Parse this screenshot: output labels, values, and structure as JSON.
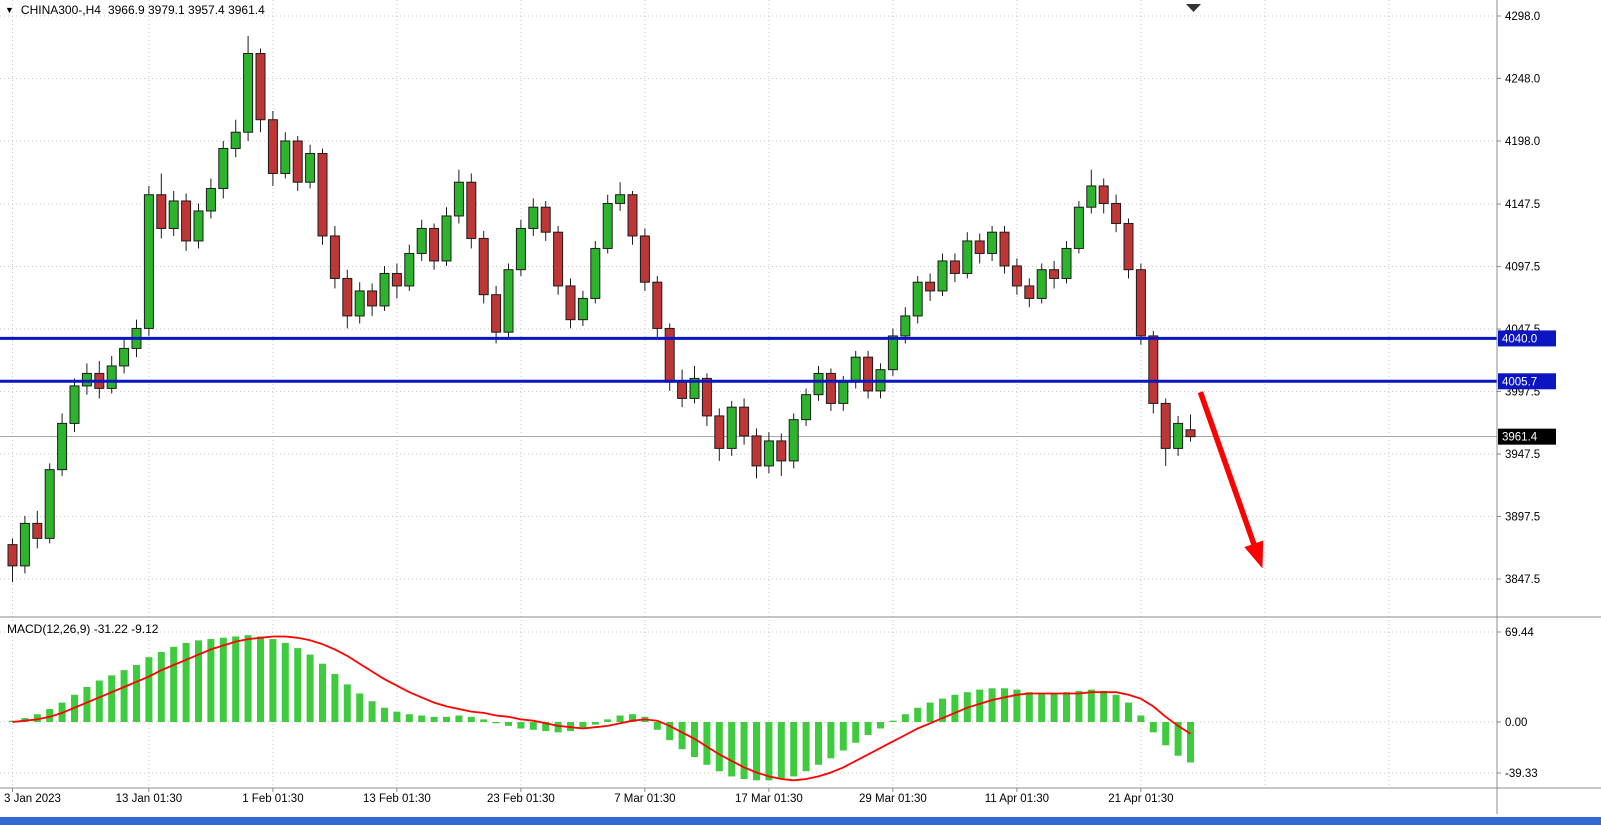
{
  "header": {
    "dropdown_icon": "▼",
    "symbol": "CHINA300-,H4",
    "ohlc_values": "3966.9 3979.1 3957.4 3961.4"
  },
  "macd_panel": {
    "label": "MACD(12,26,9)",
    "values": "-31.22 -9.12"
  },
  "price_axis": {
    "labels": [
      "4298.0",
      "4248.0",
      "4198.0",
      "4147.5",
      "4097.5",
      "4047.5",
      "3997.5",
      "3947.5",
      "3897.5",
      "3847.5"
    ],
    "values": [
      4298.0,
      4248.0,
      4198.0,
      4147.5,
      4097.5,
      4047.5,
      3997.5,
      3947.5,
      3897.5,
      3847.5
    ]
  },
  "macd_axis": {
    "labels": [
      "69.44",
      "0.00",
      "-39.33"
    ],
    "values": [
      69.44,
      0,
      -39.33
    ]
  },
  "colors": {
    "bull": "#2db42d",
    "bear": "#bf3636",
    "candle_outline": "#1c1c1c",
    "grid": "#c6c6c6",
    "level_line": "#0b16c0",
    "level_badge_text": "#ffffff",
    "last_price_line": "#a8a8a8",
    "last_price_badge": "#000000",
    "macd_histogram": "#3ecb3e",
    "macd_signal": "#ff0000",
    "arrow": "#fe0000",
    "separator": "#8c8c8c",
    "axis_text": "#000000",
    "bottom_bar": "#3468d4",
    "shift_marker": "#333333"
  },
  "chart_data": {
    "type": "candlestick",
    "symbol": "CHINA300-",
    "timeframe": "H4",
    "title": "CHINA300-,H4",
    "ohlc_display": [
      3966.9,
      3979.1,
      3957.4,
      3961.4
    ],
    "ylim": [
      3847.5,
      4298.0
    ],
    "grid": true,
    "time_labels": [
      "3 Jan 2023",
      "13 Jan 01:30",
      "1 Feb 01:30",
      "13 Feb 01:30",
      "23 Feb 01:30",
      "7 Mar 01:30",
      "17 Mar 01:30",
      "29 Mar 01:30",
      "11 Apr 01:30",
      "21 Apr 01:30"
    ],
    "label_indices": [
      0,
      11,
      21,
      31,
      41,
      51,
      61,
      71,
      81,
      91
    ],
    "extra_grid_indices": [
      101,
      111
    ],
    "horizontal_lines": [
      {
        "price": 4040.0,
        "label": "4040.0"
      },
      {
        "price": 4005.7,
        "label": "4005.7"
      }
    ],
    "last_price": {
      "value": 3961.4,
      "label": "3961.4"
    },
    "candles": [
      [
        3875,
        3880,
        3845,
        3858
      ],
      [
        3858,
        3898,
        3852,
        3892
      ],
      [
        3892,
        3902,
        3872,
        3880
      ],
      [
        3880,
        3940,
        3876,
        3935
      ],
      [
        3935,
        3980,
        3930,
        3972
      ],
      [
        3972,
        4008,
        3965,
        4002
      ],
      [
        4002,
        4020,
        3995,
        4012
      ],
      [
        4012,
        4022,
        3992,
        4000
      ],
      [
        4000,
        4026,
        3996,
        4018
      ],
      [
        4018,
        4040,
        4012,
        4032
      ],
      [
        4032,
        4055,
        4025,
        4048
      ],
      [
        4048,
        4162,
        4042,
        4155
      ],
      [
        4155,
        4172,
        4120,
        4128
      ],
      [
        4128,
        4158,
        4122,
        4150
      ],
      [
        4150,
        4156,
        4110,
        4118
      ],
      [
        4118,
        4148,
        4112,
        4142
      ],
      [
        4142,
        4168,
        4136,
        4160
      ],
      [
        4160,
        4198,
        4152,
        4192
      ],
      [
        4192,
        4215,
        4185,
        4205
      ],
      [
        4205,
        4282,
        4198,
        4268
      ],
      [
        4268,
        4272,
        4205,
        4215
      ],
      [
        4215,
        4222,
        4162,
        4172
      ],
      [
        4172,
        4205,
        4168,
        4198
      ],
      [
        4198,
        4202,
        4158,
        4165
      ],
      [
        4165,
        4195,
        4160,
        4188
      ],
      [
        4188,
        4192,
        4115,
        4122
      ],
      [
        4122,
        4130,
        4080,
        4088
      ],
      [
        4088,
        4095,
        4048,
        4058
      ],
      [
        4058,
        4085,
        4052,
        4078
      ],
      [
        4078,
        4084,
        4058,
        4066
      ],
      [
        4066,
        4098,
        4062,
        4092
      ],
      [
        4092,
        4100,
        4072,
        4082
      ],
      [
        4082,
        4115,
        4078,
        4108
      ],
      [
        4108,
        4135,
        4102,
        4128
      ],
      [
        4128,
        4132,
        4095,
        4102
      ],
      [
        4102,
        4145,
        4098,
        4138
      ],
      [
        4138,
        4175,
        4132,
        4165
      ],
      [
        4165,
        4172,
        4112,
        4120
      ],
      [
        4120,
        4126,
        4068,
        4075
      ],
      [
        4075,
        4082,
        4036,
        4045
      ],
      [
        4045,
        4100,
        4040,
        4095
      ],
      [
        4095,
        4135,
        4090,
        4128
      ],
      [
        4128,
        4152,
        4122,
        4145
      ],
      [
        4145,
        4150,
        4118,
        4125
      ],
      [
        4125,
        4130,
        4075,
        4082
      ],
      [
        4082,
        4088,
        4048,
        4055
      ],
      [
        4055,
        4078,
        4050,
        4072
      ],
      [
        4072,
        4118,
        4068,
        4112
      ],
      [
        4112,
        4155,
        4108,
        4148
      ],
      [
        4148,
        4165,
        4142,
        4155
      ],
      [
        4155,
        4158,
        4115,
        4122
      ],
      [
        4122,
        4128,
        4078,
        4085
      ],
      [
        4085,
        4090,
        4040,
        4048
      ],
      [
        4048,
        4052,
        3998,
        4005
      ],
      [
        4005,
        4015,
        3985,
        3992
      ],
      [
        3992,
        4018,
        3988,
        4008
      ],
      [
        4008,
        4012,
        3970,
        3978
      ],
      [
        3978,
        3984,
        3942,
        3952
      ],
      [
        3952,
        3990,
        3946,
        3985
      ],
      [
        3985,
        3992,
        3955,
        3962
      ],
      [
        3962,
        3968,
        3928,
        3938
      ],
      [
        3938,
        3965,
        3932,
        3958
      ],
      [
        3958,
        3964,
        3930,
        3942
      ],
      [
        3942,
        3980,
        3936,
        3975
      ],
      [
        3975,
        4000,
        3970,
        3995
      ],
      [
        3995,
        4018,
        3990,
        4012
      ],
      [
        4012,
        4016,
        3982,
        3988
      ],
      [
        3988,
        4010,
        3982,
        4005
      ],
      [
        4005,
        4030,
        4000,
        4025
      ],
      [
        4025,
        4030,
        3992,
        3998
      ],
      [
        3998,
        4020,
        3992,
        4015
      ],
      [
        4015,
        4048,
        4010,
        4042
      ],
      [
        4042,
        4065,
        4036,
        4058
      ],
      [
        4058,
        4090,
        4052,
        4085
      ],
      [
        4085,
        4092,
        4070,
        4078
      ],
      [
        4078,
        4108,
        4074,
        4102
      ],
      [
        4102,
        4108,
        4085,
        4092
      ],
      [
        4092,
        4125,
        4088,
        4118
      ],
      [
        4118,
        4124,
        4100,
        4108
      ],
      [
        4108,
        4130,
        4102,
        4125
      ],
      [
        4125,
        4130,
        4092,
        4098
      ],
      [
        4098,
        4104,
        4075,
        4082
      ],
      [
        4082,
        4088,
        4065,
        4072
      ],
      [
        4072,
        4100,
        4068,
        4095
      ],
      [
        4095,
        4102,
        4080,
        4088
      ],
      [
        4088,
        4118,
        4084,
        4112
      ],
      [
        4112,
        4150,
        4108,
        4145
      ],
      [
        4145,
        4175,
        4140,
        4162
      ],
      [
        4162,
        4168,
        4140,
        4148
      ],
      [
        4148,
        4155,
        4125,
        4132
      ],
      [
        4132,
        4136,
        4088,
        4095
      ],
      [
        4095,
        4100,
        4035,
        4042
      ],
      [
        4042,
        4046,
        3980,
        3988
      ],
      [
        3988,
        3992,
        3938,
        3952
      ],
      [
        3952,
        3978,
        3946,
        3972
      ],
      [
        3966.9,
        3979.1,
        3957.4,
        3961.4
      ]
    ],
    "indicator": {
      "type": "MACD",
      "label": "MACD(12,26,9)",
      "current_macd": -31.22,
      "current_signal": -9.12,
      "ylim": [
        -39.33,
        69.44
      ],
      "histogram": [
        1,
        3,
        6,
        10,
        15,
        21,
        27,
        32,
        36,
        40,
        44,
        50,
        54,
        58,
        61,
        63,
        64,
        65,
        66,
        67,
        66,
        64,
        61,
        57,
        52,
        45,
        37,
        29,
        22,
        16,
        11,
        8,
        6,
        5,
        4,
        4,
        5,
        4,
        2,
        -1,
        -3,
        -5,
        -6,
        -7,
        -8,
        -7,
        -5,
        -2,
        2,
        5,
        6,
        4,
        -6,
        -14,
        -21,
        -27,
        -33,
        -38,
        -42,
        -44,
        -45,
        -45,
        -44,
        -42,
        -38,
        -33,
        -28,
        -22,
        -16,
        -10,
        -5,
        1,
        6,
        11,
        15,
        18,
        21,
        23,
        25,
        26,
        26,
        25,
        23,
        22,
        22,
        23,
        24,
        25,
        24,
        21,
        15,
        5,
        -8,
        -18,
        -26,
        -31.22
      ],
      "signal": [
        0,
        1,
        2,
        4,
        7,
        11,
        15,
        19,
        23,
        27,
        31,
        35,
        40,
        44,
        48,
        52,
        56,
        59,
        62,
        64,
        65,
        66,
        66,
        65,
        63,
        60,
        56,
        51,
        45,
        39,
        33,
        28,
        23,
        19,
        15,
        12,
        10,
        8,
        7,
        5,
        4,
        2,
        1,
        -1,
        -3,
        -4,
        -5,
        -4,
        -3,
        -1,
        1,
        2,
        1,
        -3,
        -8,
        -13,
        -19,
        -25,
        -30,
        -35,
        -39,
        -42,
        -44,
        -45,
        -44,
        -42,
        -39,
        -35,
        -30,
        -25,
        -20,
        -15,
        -10,
        -5,
        -1,
        3,
        7,
        11,
        14,
        17,
        19,
        21,
        22,
        22,
        22,
        22,
        22,
        23,
        23,
        23,
        21,
        18,
        12,
        4,
        -3,
        -9.12
      ]
    },
    "annotations": [
      {
        "type": "arrow",
        "from": {
          "index": 95.8,
          "price": 3997
        },
        "to": {
          "index": 100.8,
          "price": 3856
        }
      }
    ]
  }
}
